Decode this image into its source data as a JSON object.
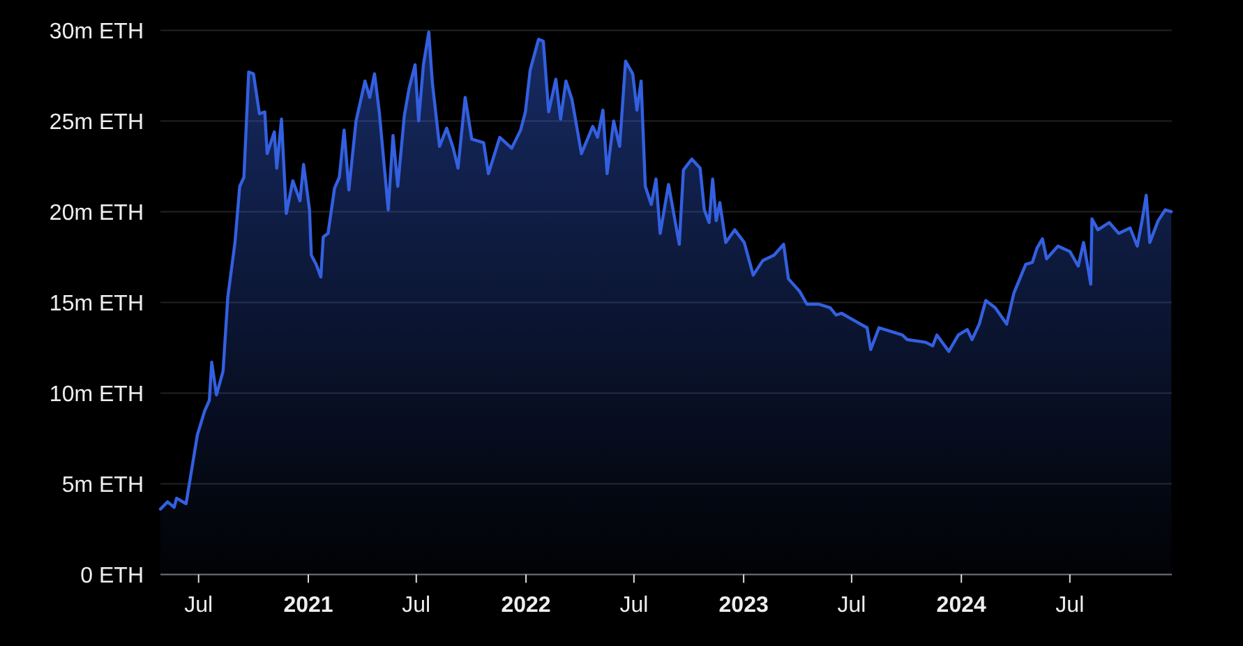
{
  "chart_data": {
    "type": "area",
    "xlim": [
      "2020-04-28",
      "2024-12-19"
    ],
    "xticks": [
      {
        "value": "2020-07-01",
        "label": "Jul"
      },
      {
        "value": "2021-01-01",
        "label": "2021"
      },
      {
        "value": "2021-07-01",
        "label": "Jul"
      },
      {
        "value": "2022-01-01",
        "label": "2022"
      },
      {
        "value": "2022-07-01",
        "label": "Jul"
      },
      {
        "value": "2023-01-01",
        "label": "2023"
      },
      {
        "value": "2023-07-01",
        "label": "Jul"
      },
      {
        "value": "2024-01-01",
        "label": "2024"
      },
      {
        "value": "2024-07-01",
        "label": "Jul"
      }
    ],
    "ylim": [
      0,
      30
    ],
    "yticks": [
      {
        "value": 0,
        "label": "0 ETH"
      },
      {
        "value": 5,
        "label": "5m ETH"
      },
      {
        "value": 10,
        "label": "10m ETH"
      },
      {
        "value": 15,
        "label": "15m ETH"
      },
      {
        "value": 20,
        "label": "20m ETH"
      },
      {
        "value": 25,
        "label": "25m ETH"
      },
      {
        "value": 30,
        "label": "30m ETH"
      }
    ],
    "grid": "y",
    "series": [
      {
        "color": "#3360e0",
        "x": [
          "2020-04-28",
          "2020-05-10",
          "2020-05-21",
          "2020-05-25",
          "2020-06-10",
          "2020-06-22",
          "2020-06-29",
          "2020-07-11",
          "2020-07-19",
          "2020-07-23",
          "2020-07-31",
          "2020-08-11",
          "2020-08-19",
          "2020-08-31",
          "2020-09-08",
          "2020-09-15",
          "2020-09-23",
          "2020-10-01",
          "2020-10-11",
          "2020-10-20",
          "2020-10-24",
          "2020-11-05",
          "2020-11-09",
          "2020-11-17",
          "2020-11-25",
          "2020-12-06",
          "2020-12-18",
          "2020-12-24",
          "2021-01-03",
          "2021-01-06",
          "2021-01-14",
          "2021-01-22",
          "2021-01-26",
          "2021-02-03",
          "2021-02-14",
          "2021-02-22",
          "2021-03-02",
          "2021-03-10",
          "2021-03-22",
          "2021-04-06",
          "2021-04-14",
          "2021-04-22",
          "2021-04-30",
          "2021-05-15",
          "2021-05-23",
          "2021-05-31",
          "2021-06-11",
          "2021-06-19",
          "2021-06-29",
          "2021-07-05",
          "2021-07-13",
          "2021-07-22",
          "2021-07-28",
          "2021-08-09",
          "2021-08-21",
          "2021-09-01",
          "2021-09-09",
          "2021-09-21",
          "2021-10-02",
          "2021-10-22",
          "2021-10-30",
          "2021-11-18",
          "2021-12-08",
          "2021-12-23",
          "2021-12-31",
          "2022-01-08",
          "2022-01-22",
          "2022-01-30",
          "2022-02-08",
          "2022-02-20",
          "2022-02-28",
          "2022-03-09",
          "2022-03-19",
          "2022-04-04",
          "2022-04-23",
          "2022-05-01",
          "2022-05-10",
          "2022-05-17",
          "2022-05-28",
          "2022-06-07",
          "2022-06-17",
          "2022-06-29",
          "2022-07-06",
          "2022-07-13",
          "2022-07-20",
          "2022-07-30",
          "2022-08-07",
          "2022-08-14",
          "2022-08-28",
          "2022-09-15",
          "2022-09-22",
          "2022-10-06",
          "2022-10-20",
          "2022-10-27",
          "2022-11-04",
          "2022-11-10",
          "2022-11-16",
          "2022-11-22",
          "2022-12-02",
          "2022-12-17",
          "2023-01-02",
          "2023-01-17",
          "2023-02-02",
          "2023-02-21",
          "2023-03-09",
          "2023-03-17",
          "2023-04-05",
          "2023-04-17",
          "2023-05-07",
          "2023-05-26",
          "2023-06-05",
          "2023-06-14",
          "2023-07-16",
          "2023-07-27",
          "2023-08-02",
          "2023-08-16",
          "2023-09-24",
          "2023-10-02",
          "2023-11-02",
          "2023-11-14",
          "2023-11-21",
          "2023-12-11",
          "2023-12-27",
          "2024-01-11",
          "2024-01-19",
          "2024-01-31",
          "2024-02-11",
          "2024-02-27",
          "2024-03-17",
          "2024-03-29",
          "2024-04-18",
          "2024-04-29",
          "2024-05-07",
          "2024-05-16",
          "2024-05-23",
          "2024-06-11",
          "2024-07-01",
          "2024-07-15",
          "2024-07-24",
          "2024-08-05",
          "2024-08-07",
          "2024-08-17",
          "2024-09-05",
          "2024-09-21",
          "2024-10-10",
          "2024-10-22",
          "2024-10-30",
          "2024-11-06",
          "2024-11-12",
          "2024-11-26",
          "2024-12-08",
          "2024-12-18"
        ],
        "values": [
          3.6,
          4.0,
          3.7,
          4.2,
          3.9,
          6.3,
          7.7,
          9.0,
          9.6,
          11.7,
          9.9,
          11.2,
          15.3,
          18.3,
          21.4,
          21.9,
          27.7,
          27.6,
          25.4,
          25.5,
          23.2,
          24.4,
          22.4,
          25.1,
          19.9,
          21.7,
          20.6,
          22.6,
          20.1,
          17.6,
          17.1,
          16.4,
          18.6,
          18.8,
          21.3,
          21.9,
          24.5,
          21.2,
          25.0,
          27.2,
          26.3,
          27.6,
          25.5,
          20.1,
          24.2,
          21.4,
          25.3,
          26.8,
          28.1,
          25.0,
          28.1,
          29.9,
          27.1,
          23.6,
          24.6,
          23.5,
          22.4,
          26.3,
          24.0,
          23.8,
          22.1,
          24.1,
          23.5,
          24.5,
          25.5,
          27.8,
          29.5,
          29.4,
          25.5,
          27.3,
          25.1,
          27.2,
          26.2,
          23.2,
          24.7,
          24.1,
          25.6,
          22.1,
          25.0,
          23.6,
          28.3,
          27.6,
          25.6,
          27.2,
          21.4,
          20.4,
          21.8,
          18.8,
          21.5,
          18.2,
          22.3,
          22.9,
          22.4,
          20.1,
          19.4,
          21.8,
          19.5,
          20.5,
          18.3,
          19.0,
          18.3,
          16.5,
          17.3,
          17.6,
          18.2,
          16.3,
          15.6,
          14.9,
          14.9,
          14.7,
          14.3,
          14.4,
          13.8,
          13.6,
          12.4,
          13.6,
          13.2,
          12.95,
          12.8,
          12.6,
          13.2,
          12.3,
          13.2,
          13.5,
          12.95,
          13.8,
          15.1,
          14.7,
          13.8,
          15.5,
          17.1,
          17.2,
          18.0,
          18.5,
          17.4,
          18.1,
          17.8,
          17.0,
          18.3,
          16.0,
          19.6,
          19.0,
          19.4,
          18.8,
          19.1,
          18.1,
          19.5,
          20.9,
          18.3,
          19.5,
          20.1,
          20.0
        ]
      }
    ]
  }
}
